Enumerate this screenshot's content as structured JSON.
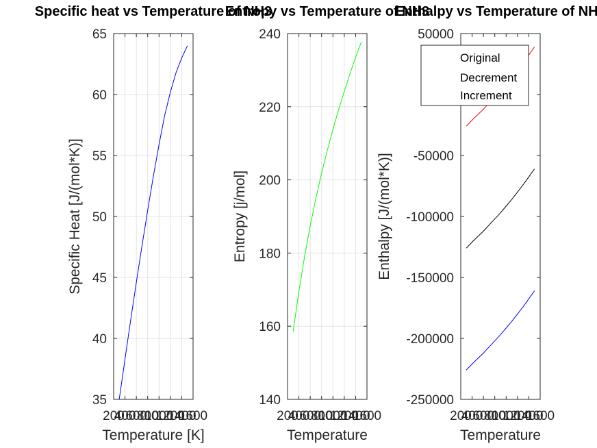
{
  "figure": {
    "panels": [
      {
        "title": "Specific heat vs Temperature of NH3",
        "xlabel": "Temperature [K]",
        "ylabel": "Specific Heat [J/(mol*K)]"
      },
      {
        "title": "Entropy vs Temperature of NH3",
        "xlabel": "Temperature",
        "ylabel": "Entropy [j/mol]"
      },
      {
        "title": "Enthalpy vs Temperature of NH3",
        "xlabel": "Temperature",
        "ylabel": "Enthalpy [J/(mol*K)]",
        "legend": [
          "Original",
          "Decrement",
          "Increment"
        ]
      }
    ]
  },
  "chart_data": [
    {
      "type": "line",
      "title": "Specific heat vs Temperature of NH3",
      "xlabel": "Temperature [K]",
      "ylabel": "Specific Heat [J/(mol*K)]",
      "xlim": [
        200,
        1600
      ],
      "ylim": [
        35,
        65
      ],
      "xticks": [
        200,
        400,
        600,
        800,
        1000,
        1200,
        1400,
        1600
      ],
      "xtick_labels": [
        "200",
        "400",
        "600",
        "800",
        "1000",
        "1200",
        "1400",
        "1600"
      ],
      "yticks": [
        35,
        40,
        45,
        50,
        55,
        60,
        65
      ],
      "ytick_labels": [
        "35",
        "40",
        "45",
        "50",
        "55",
        "60",
        "65"
      ],
      "grid": true,
      "series": [
        {
          "color": "#0000ff",
          "x": [
            298,
            400,
            500,
            600,
            700,
            800,
            900,
            1000,
            1100,
            1200,
            1300,
            1400,
            1500
          ],
          "y": [
            35.0,
            38.3,
            41.5,
            44.6,
            47.6,
            50.5,
            53.3,
            55.9,
            58.3,
            60.2,
            61.8,
            63.0,
            64.0
          ]
        }
      ]
    },
    {
      "type": "line",
      "title": "Entropy vs Temperature of NH3",
      "xlabel": "Temperature",
      "ylabel": "Entropy [j/mol]",
      "xlim": [
        200,
        1600
      ],
      "ylim": [
        140,
        240
      ],
      "xticks": [
        200,
        400,
        600,
        800,
        1000,
        1200,
        1400,
        1600
      ],
      "xtick_labels": [
        "200",
        "400",
        "600",
        "800",
        "1000",
        "1200",
        "1400",
        "1600"
      ],
      "yticks": [
        140,
        160,
        180,
        200,
        220,
        240
      ],
      "ytick_labels": [
        "140",
        "160",
        "180",
        "200",
        "220",
        "240"
      ],
      "grid": true,
      "series": [
        {
          "color": "#00ff00",
          "x": [
            298,
            400,
            500,
            600,
            700,
            800,
            900,
            1000,
            1100,
            1200,
            1300,
            1400,
            1500
          ],
          "y": [
            158.5,
            169.5,
            179.0,
            187.5,
            195.0,
            201.8,
            208.0,
            213.8,
            219.2,
            224.2,
            229.0,
            233.5,
            237.7
          ]
        }
      ]
    },
    {
      "type": "line",
      "title": "Enthalpy vs Temperature of NH3",
      "xlabel": "Temperature",
      "ylabel": "Enthalpy [J/(mol*K)]",
      "xlim": [
        200,
        1600
      ],
      "ylim": [
        -250000,
        50000
      ],
      "xticks": [
        200,
        400,
        600,
        800,
        1000,
        1200,
        1400,
        1600
      ],
      "xtick_labels": [
        "200",
        "400",
        "600",
        "800",
        "1000",
        "1200",
        "1400",
        "1600"
      ],
      "yticks": [
        -250000,
        -200000,
        -150000,
        -100000,
        -50000,
        0,
        50000
      ],
      "ytick_labels": [
        "-250000",
        "-200000",
        "-150000",
        "-100000",
        "-50000",
        "",
        "50000"
      ],
      "grid": false,
      "legend_placement": "top-right",
      "series": [
        {
          "name": "Original",
          "color": "#000000",
          "x": [
            298,
            400,
            500,
            600,
            700,
            800,
            900,
            1000,
            1100,
            1200,
            1300,
            1400,
            1500
          ],
          "y": [
            -126000,
            -121000,
            -116500,
            -112000,
            -107000,
            -102000,
            -97000,
            -91500,
            -86000,
            -80000,
            -74000,
            -67500,
            -61000
          ]
        },
        {
          "name": "Decrement",
          "color": "#0000ff",
          "x": [
            298,
            400,
            500,
            600,
            700,
            800,
            900,
            1000,
            1100,
            1200,
            1300,
            1400,
            1500
          ],
          "y": [
            -226000,
            -221000,
            -216500,
            -212000,
            -207000,
            -202000,
            -197000,
            -191500,
            -186000,
            -180000,
            -174000,
            -167500,
            -161000
          ]
        },
        {
          "name": "Increment",
          "color": "#ff0000",
          "x": [
            298,
            400,
            500,
            600,
            700,
            800,
            900,
            1000,
            1100,
            1200,
            1300,
            1400,
            1500
          ],
          "y": [
            -26000,
            -21000,
            -16500,
            -12000,
            -7000,
            -2000,
            3000,
            8500,
            14000,
            20000,
            26000,
            32500,
            39000
          ]
        }
      ]
    }
  ]
}
